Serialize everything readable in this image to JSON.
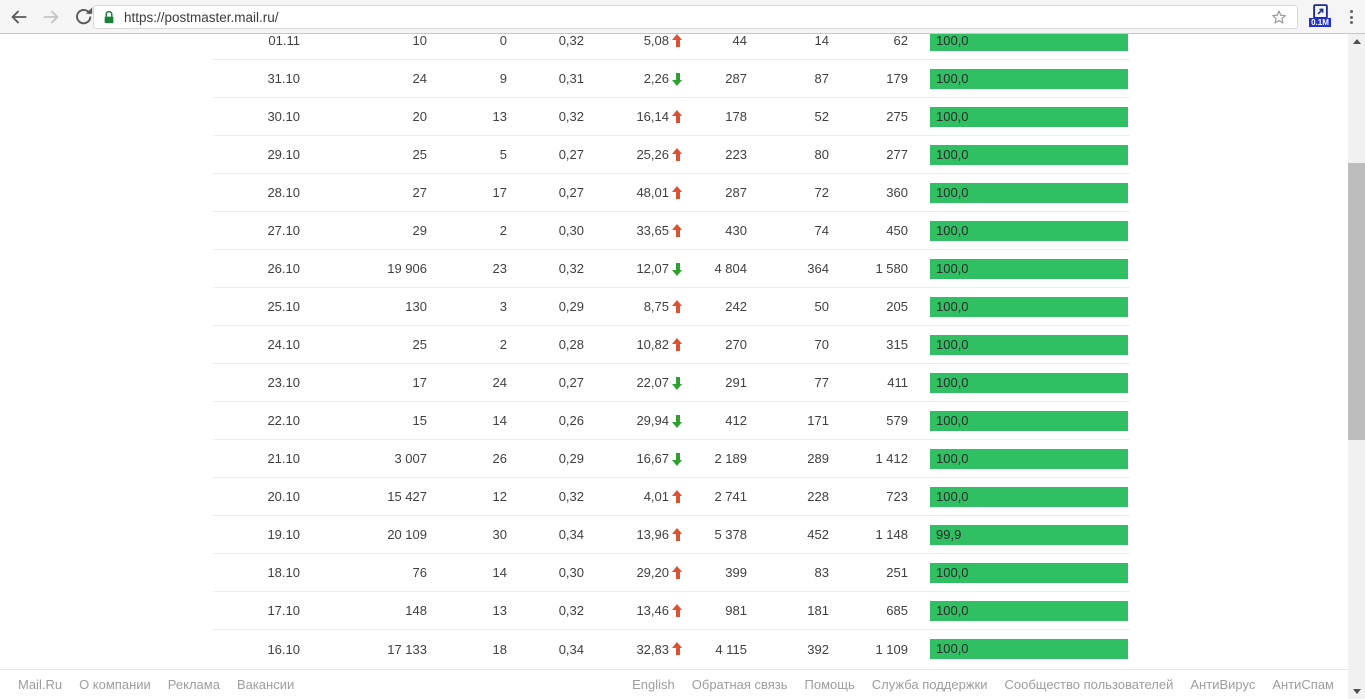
{
  "browser": {
    "url": "https://postmaster.mail.ru/",
    "extension_badge": "0.1M"
  },
  "table": {
    "rows": [
      {
        "date": "01.11",
        "c2": "10",
        "c3": "0",
        "c4": "0,32",
        "trend_value": "5,08",
        "trend_dir": "up",
        "c6": "44",
        "c7": "14",
        "c8": "62",
        "bar_label": "100,0",
        "bar_pct": 100
      },
      {
        "date": "31.10",
        "c2": "24",
        "c3": "9",
        "c4": "0,31",
        "trend_value": "2,26",
        "trend_dir": "down",
        "c6": "287",
        "c7": "87",
        "c8": "179",
        "bar_label": "100,0",
        "bar_pct": 100
      },
      {
        "date": "30.10",
        "c2": "20",
        "c3": "13",
        "c4": "0,32",
        "trend_value": "16,14",
        "trend_dir": "up",
        "c6": "178",
        "c7": "52",
        "c8": "275",
        "bar_label": "100,0",
        "bar_pct": 100
      },
      {
        "date": "29.10",
        "c2": "25",
        "c3": "5",
        "c4": "0,27",
        "trend_value": "25,26",
        "trend_dir": "up",
        "c6": "223",
        "c7": "80",
        "c8": "277",
        "bar_label": "100,0",
        "bar_pct": 100
      },
      {
        "date": "28.10",
        "c2": "27",
        "c3": "17",
        "c4": "0,27",
        "trend_value": "48,01",
        "trend_dir": "up",
        "c6": "287",
        "c7": "72",
        "c8": "360",
        "bar_label": "100,0",
        "bar_pct": 100
      },
      {
        "date": "27.10",
        "c2": "29",
        "c3": "2",
        "c4": "0,30",
        "trend_value": "33,65",
        "trend_dir": "up",
        "c6": "430",
        "c7": "74",
        "c8": "450",
        "bar_label": "100,0",
        "bar_pct": 100
      },
      {
        "date": "26.10",
        "c2": "19 906",
        "c3": "23",
        "c4": "0,32",
        "trend_value": "12,07",
        "trend_dir": "down",
        "c6": "4 804",
        "c7": "364",
        "c8": "1 580",
        "bar_label": "100,0",
        "bar_pct": 100
      },
      {
        "date": "25.10",
        "c2": "130",
        "c3": "3",
        "c4": "0,29",
        "trend_value": "8,75",
        "trend_dir": "up",
        "c6": "242",
        "c7": "50",
        "c8": "205",
        "bar_label": "100,0",
        "bar_pct": 100
      },
      {
        "date": "24.10",
        "c2": "25",
        "c3": "2",
        "c4": "0,28",
        "trend_value": "10,82",
        "trend_dir": "up",
        "c6": "270",
        "c7": "70",
        "c8": "315",
        "bar_label": "100,0",
        "bar_pct": 100
      },
      {
        "date": "23.10",
        "c2": "17",
        "c3": "24",
        "c4": "0,27",
        "trend_value": "22,07",
        "trend_dir": "down",
        "c6": "291",
        "c7": "77",
        "c8": "411",
        "bar_label": "100,0",
        "bar_pct": 100
      },
      {
        "date": "22.10",
        "c2": "15",
        "c3": "14",
        "c4": "0,26",
        "trend_value": "29,94",
        "trend_dir": "down",
        "c6": "412",
        "c7": "171",
        "c8": "579",
        "bar_label": "100,0",
        "bar_pct": 100
      },
      {
        "date": "21.10",
        "c2": "3 007",
        "c3": "26",
        "c4": "0,29",
        "trend_value": "16,67",
        "trend_dir": "down",
        "c6": "2 189",
        "c7": "289",
        "c8": "1 412",
        "bar_label": "100,0",
        "bar_pct": 100
      },
      {
        "date": "20.10",
        "c2": "15 427",
        "c3": "12",
        "c4": "0,32",
        "trend_value": "4,01",
        "trend_dir": "up",
        "c6": "2 741",
        "c7": "228",
        "c8": "723",
        "bar_label": "100,0",
        "bar_pct": 100
      },
      {
        "date": "19.10",
        "c2": "20 109",
        "c3": "30",
        "c4": "0,34",
        "trend_value": "13,96",
        "trend_dir": "up",
        "c6": "5 378",
        "c7": "452",
        "c8": "1 148",
        "bar_label": "99,9",
        "bar_pct": 99.9
      },
      {
        "date": "18.10",
        "c2": "76",
        "c3": "14",
        "c4": "0,30",
        "trend_value": "29,20",
        "trend_dir": "up",
        "c6": "399",
        "c7": "83",
        "c8": "251",
        "bar_label": "100,0",
        "bar_pct": 100
      },
      {
        "date": "17.10",
        "c2": "148",
        "c3": "13",
        "c4": "0,32",
        "trend_value": "13,46",
        "trend_dir": "up",
        "c6": "981",
        "c7": "181",
        "c8": "685",
        "bar_label": "100,0",
        "bar_pct": 100
      },
      {
        "date": "16.10",
        "c2": "17 133",
        "c3": "18",
        "c4": "0,34",
        "trend_value": "32,83",
        "trend_dir": "up",
        "c6": "4 115",
        "c7": "392",
        "c8": "1 109",
        "bar_label": "100,0",
        "bar_pct": 100
      }
    ]
  },
  "footer": {
    "left": [
      "Mail.Ru",
      "О компании",
      "Реклама",
      "Вакансии"
    ],
    "right": [
      "English",
      "Обратная связь",
      "Помощь",
      "Служба поддержки",
      "Сообщество пользователей",
      "АнтиВирус",
      "АнтиСпам"
    ]
  },
  "colors": {
    "bar_green": "#30bf63",
    "trend_up": "#e0502f",
    "trend_down": "#2ba32b",
    "lock_green": "#188038",
    "badge_blue": "#2231cc"
  }
}
